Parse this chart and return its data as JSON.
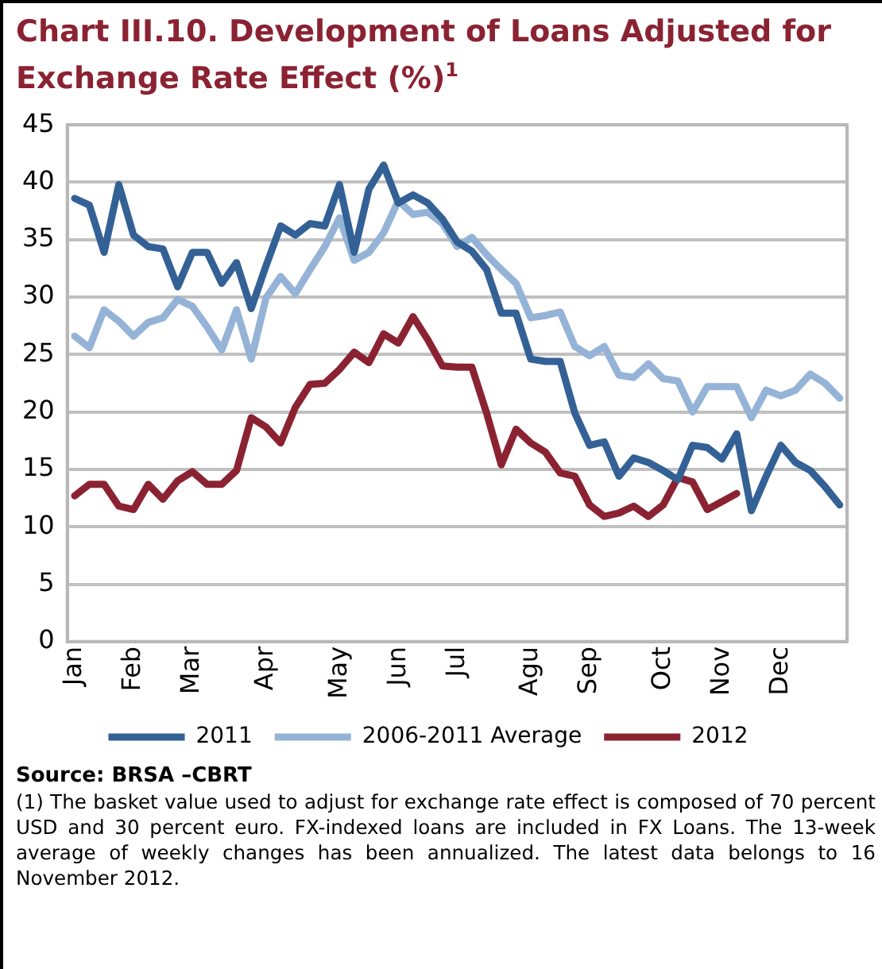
{
  "chart_data": {
    "type": "line",
    "title": "Chart III.10. Development of Loans Adjusted for Exchange Rate Effect (%)$^{1}$",
    "categories": [
      "Jan",
      null,
      null,
      null,
      "Feb",
      null,
      null,
      null,
      "Mar",
      null,
      null,
      null,
      null,
      "Apr",
      null,
      null,
      null,
      null,
      "May",
      null,
      null,
      null,
      "Jun",
      null,
      null,
      null,
      "Jul",
      null,
      null,
      null,
      null,
      "Agu",
      null,
      null,
      null,
      "Sep",
      null,
      null,
      null,
      null,
      "Oct",
      null,
      null,
      null,
      "Nov",
      null,
      null,
      null,
      "Dec",
      null,
      null,
      null,
      null
    ],
    "series": [
      {
        "name": "2011",
        "color": "#336195",
        "values": [
          38.6,
          38.0,
          33.9,
          39.8,
          35.4,
          34.4,
          34.2,
          30.9,
          33.9,
          33.9,
          31.2,
          33.0,
          29.0,
          32.7,
          36.2,
          35.4,
          36.4,
          36.2,
          39.8,
          33.9,
          39.4,
          41.5,
          38.2,
          38.9,
          38.2,
          36.8,
          34.8,
          34.0,
          32.4,
          28.6,
          28.6,
          24.6,
          24.4,
          24.4,
          19.9,
          17.1,
          17.4,
          14.4,
          16.0,
          15.6,
          14.9,
          14.1,
          17.1,
          16.9,
          15.9,
          18.1,
          11.4,
          14.4,
          17.1,
          15.6,
          14.9,
          13.5,
          11.9
        ]
      },
      {
        "name": "2006-2011 Average",
        "color": "#95b3d7",
        "values": [
          26.6,
          25.6,
          28.9,
          27.9,
          26.6,
          27.8,
          28.2,
          29.8,
          29.2,
          27.4,
          25.4,
          28.9,
          24.6,
          29.9,
          31.8,
          30.3,
          32.4,
          34.4,
          36.9,
          33.2,
          33.9,
          35.6,
          38.4,
          37.2,
          37.4,
          36.4,
          34.4,
          35.2,
          33.7,
          32.4,
          31.2,
          28.2,
          28.4,
          28.7,
          25.7,
          24.9,
          25.7,
          23.2,
          23.0,
          24.2,
          22.9,
          22.7,
          20.0,
          22.2,
          22.2,
          22.2,
          19.5,
          21.9,
          21.4,
          21.9,
          23.3,
          22.5,
          21.2
        ]
      },
      {
        "name": "2012",
        "color": "#8b2232",
        "values": [
          12.7,
          13.7,
          13.7,
          11.8,
          11.5,
          13.7,
          12.4,
          14.0,
          14.8,
          13.7,
          13.7,
          14.9,
          19.5,
          18.7,
          17.3,
          20.4,
          22.4,
          22.5,
          23.7,
          25.2,
          24.3,
          26.8,
          26.0,
          28.3,
          26.3,
          24.0,
          23.9,
          23.9,
          19.9,
          15.4,
          18.5,
          17.3,
          16.5,
          14.7,
          14.4,
          11.9,
          10.9,
          11.2,
          11.8,
          10.9,
          11.9,
          14.3,
          13.9,
          11.5,
          12.2,
          12.9,
          null,
          null,
          null,
          null,
          null,
          null,
          null
        ]
      }
    ],
    "ylim": [
      0,
      45
    ],
    "yticks": [
      0,
      5,
      10,
      15,
      20,
      25,
      30,
      35,
      40,
      45
    ],
    "grid": "y",
    "legend": "bottom",
    "marker": "none",
    "line_style": "solid",
    "annotations": [
      "Source: BRSA –CBRT",
      "(1) The basket value used to adjust for exchange rate effect is composed of 70 percent USD and 30 percent euro. FX-indexed loans are included in FX Loans. The 13-week average of weekly changes has been annualized. The latest data belongs to 16 November 2012."
    ]
  }
}
